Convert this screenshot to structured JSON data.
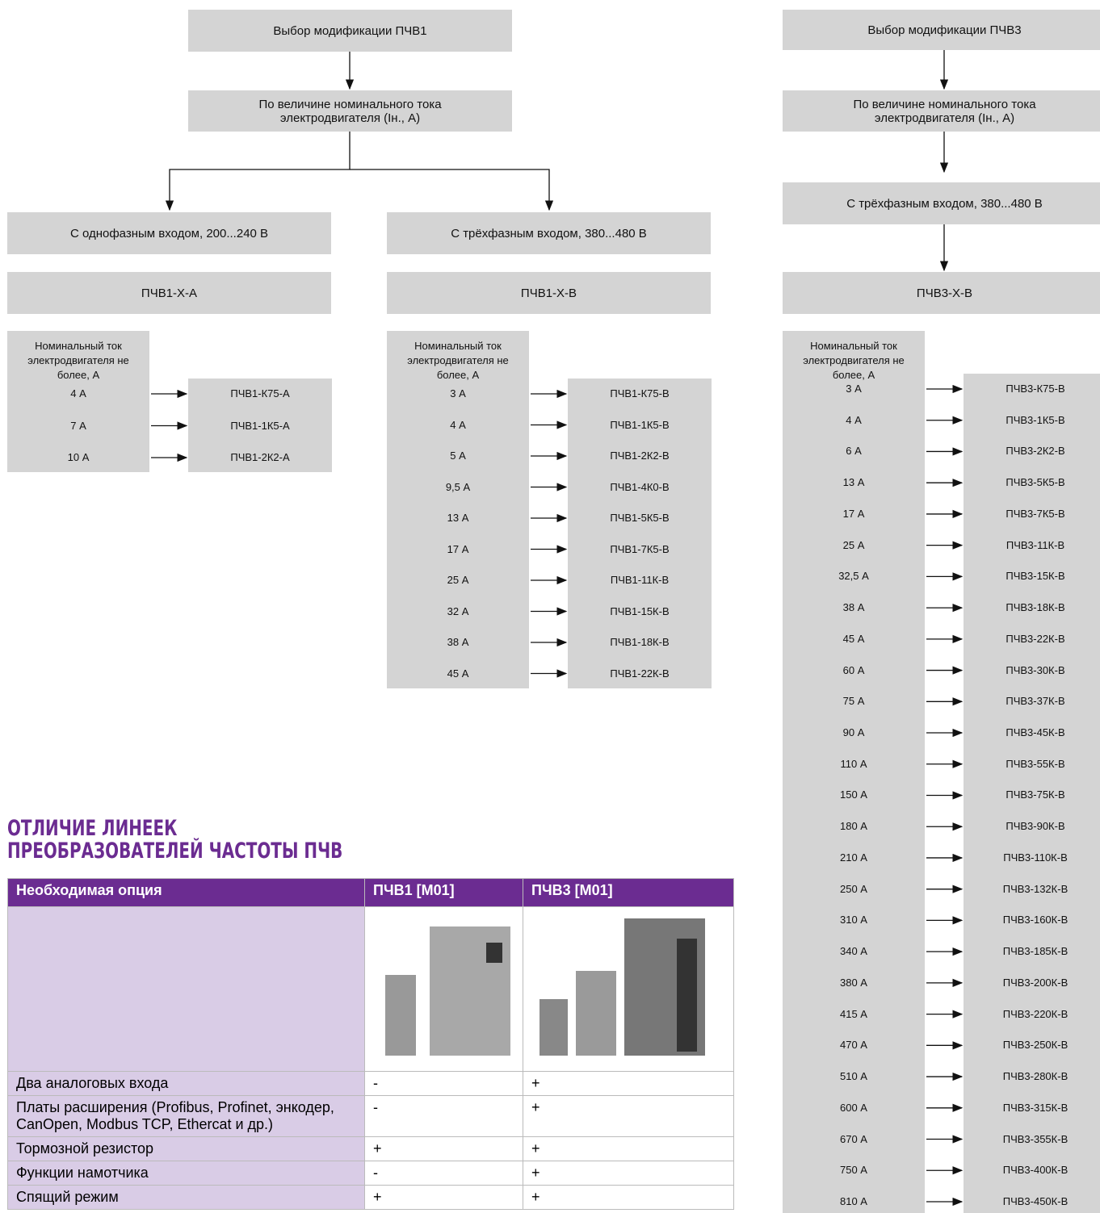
{
  "pchv1": {
    "title": "Выбор модификации ПЧВ1",
    "criterion": "По величине номинального тока электродвигателя (Iн., А)",
    "branches": [
      {
        "input": "С однофазным входом, 200...240 В",
        "code": "ПЧВ1-Х-А",
        "header": "Номинальный ток электродвигателя не более, А",
        "rows": [
          [
            "4 А",
            "ПЧВ1-К75-А"
          ],
          [
            "7 А",
            "ПЧВ1-1К5-А"
          ],
          [
            "10 А",
            "ПЧВ1-2К2-А"
          ]
        ]
      },
      {
        "input": "С трёхфазным входом, 380...480 В",
        "code": "ПЧВ1-Х-В",
        "header": "Номинальный ток электродвигателя не более, А",
        "rows": [
          [
            "3 А",
            "ПЧВ1-К75-В"
          ],
          [
            "4 А",
            "ПЧВ1-1К5-В"
          ],
          [
            "5 А",
            "ПЧВ1-2К2-В"
          ],
          [
            "9,5 А",
            "ПЧВ1-4К0-В"
          ],
          [
            "13 А",
            "ПЧВ1-5К5-В"
          ],
          [
            "17 А",
            "ПЧВ1-7К5-В"
          ],
          [
            "25 А",
            "ПЧВ1-11К-В"
          ],
          [
            "32 А",
            "ПЧВ1-15К-В"
          ],
          [
            "38 А",
            "ПЧВ1-18К-В"
          ],
          [
            "45 А",
            "ПЧВ1-22К-В"
          ]
        ]
      }
    ]
  },
  "pchv3": {
    "title": "Выбор модификации ПЧВ3",
    "criterion": "По величине номинального тока электродвигателя (Iн., А)",
    "branches": [
      {
        "input": "С трёхфазным входом, 380...480 В",
        "code": "ПЧВ3-Х-В",
        "header": "Номинальный ток электродвигателя не более, А",
        "rows": [
          [
            "3 А",
            "ПЧВ3-К75-В"
          ],
          [
            "4 А",
            "ПЧВ3-1К5-В"
          ],
          [
            "6 А",
            "ПЧВ3-2К2-В"
          ],
          [
            "13 А",
            "ПЧВ3-5К5-В"
          ],
          [
            "17 А",
            "ПЧВ3-7К5-В"
          ],
          [
            "25 А",
            "ПЧВ3-11К-В"
          ],
          [
            "32,5 А",
            "ПЧВ3-15К-В"
          ],
          [
            "38 А",
            "ПЧВ3-18К-В"
          ],
          [
            "45 А",
            "ПЧВ3-22К-В"
          ],
          [
            "60 А",
            "ПЧВ3-30К-В"
          ],
          [
            "75 А",
            "ПЧВ3-37К-В"
          ],
          [
            "90 А",
            "ПЧВ3-45К-В"
          ],
          [
            "110 А",
            "ПЧВ3-55К-В"
          ],
          [
            "150 А",
            "ПЧВ3-75К-В"
          ],
          [
            "180 А",
            "ПЧВ3-90К-В"
          ],
          [
            "210 А",
            "ПЧВ3-110К-В"
          ],
          [
            "250 А",
            "ПЧВ3-132К-В"
          ],
          [
            "310 А",
            "ПЧВ3-160К-В"
          ],
          [
            "340 А",
            "ПЧВ3-185К-В"
          ],
          [
            "380 А",
            "ПЧВ3-200К-В"
          ],
          [
            "415 А",
            "ПЧВ3-220К-В"
          ],
          [
            "470 А",
            "ПЧВ3-250К-В"
          ],
          [
            "510 А",
            "ПЧВ3-280К-В"
          ],
          [
            "600 А",
            "ПЧВ3-315К-В"
          ],
          [
            "670 А",
            "ПЧВ3-355К-В"
          ],
          [
            "750 А",
            "ПЧВ3-400К-В"
          ],
          [
            "810 А",
            "ПЧВ3-450К-В"
          ]
        ]
      }
    ]
  },
  "comparison": {
    "heading": [
      "ОТЛИЧИЕ ЛИНЕЕК",
      "ПРЕОБРАЗОВАТЕЛЕЙ ЧАСТОТЫ ПЧВ"
    ],
    "columns": [
      "Необходимая опция",
      "ПЧВ1 [M01]",
      "ПЧВ3 [M01]"
    ],
    "rows": [
      [
        "Два аналоговых входа",
        "-",
        "+"
      ],
      [
        "Платы расширения (Profibus, Profinet, энкодер, CanOpen, Modbus TCP, Ethercat и др.)",
        "-",
        "+"
      ],
      [
        "Тормозной резистор",
        "+",
        "+"
      ],
      [
        "Функции намотчика",
        "-",
        "+"
      ],
      [
        "Спящий режим",
        "+",
        "+"
      ]
    ]
  }
}
